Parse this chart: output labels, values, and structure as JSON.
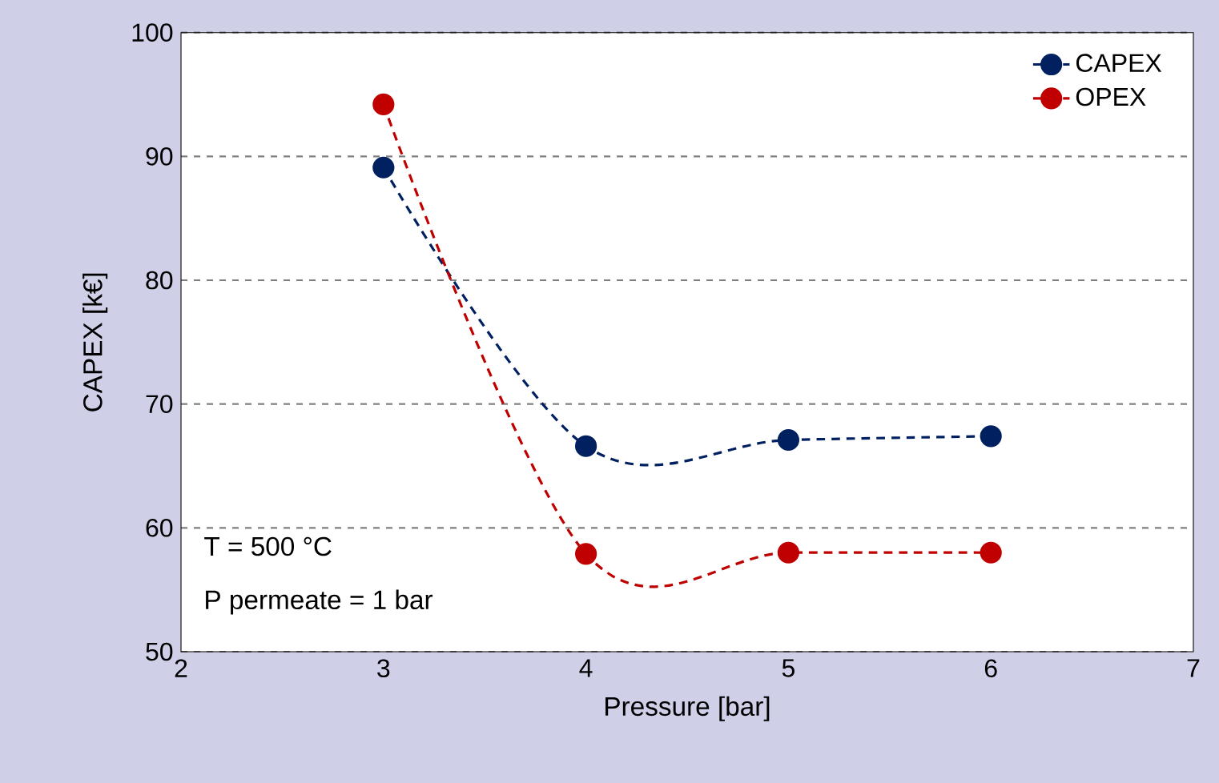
{
  "chart_data": {
    "type": "line",
    "xlabel": "Pressure [bar]",
    "ylabel": "CAPEX [k€]",
    "x": [
      3,
      4,
      5,
      6
    ],
    "series": [
      {
        "name": "CAPEX",
        "color": "#002060",
        "values": [
          89.1,
          66.6,
          67.1,
          67.4
        ]
      },
      {
        "name": "OPEX",
        "color": "#c00000",
        "values": [
          94.2,
          57.9,
          58.0,
          58.0
        ]
      }
    ],
    "xlim": [
      2,
      7
    ],
    "ylim": [
      50,
      100
    ],
    "xticks": [
      2,
      3,
      4,
      5,
      6,
      7
    ],
    "yticks": [
      50,
      60,
      70,
      80,
      90,
      100
    ],
    "grid": "y",
    "legend": "top right",
    "marker": "circle",
    "line_style": "dashed",
    "annotations": [
      "T = 500 °C",
      "P permeate = 1 bar"
    ]
  }
}
